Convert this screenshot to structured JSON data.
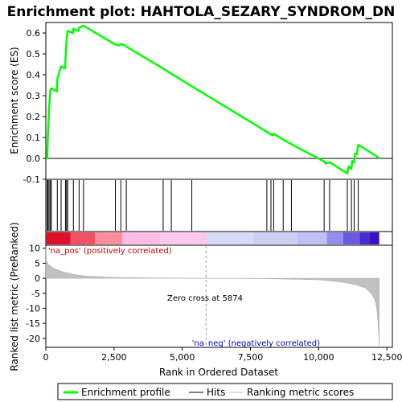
{
  "chart_data": {
    "type": "line",
    "title": "Enrichment plot: HAHTOLA_SEZARY_SYNDROM_DN",
    "top_panel": {
      "ylabel": "Enrichment score (ES)",
      "ylim": [
        -0.1,
        0.65
      ],
      "yticks": [
        "-0.1",
        "0.0",
        "0.1",
        "0.2",
        "0.3",
        "0.4",
        "0.5",
        "0.6"
      ],
      "ytick_values": [
        -0.1,
        0.0,
        0.1,
        0.2,
        0.3,
        0.4,
        0.5,
        0.6
      ],
      "series": {
        "name": "Enrichment profile",
        "color": "#00ff00",
        "x": [
          0,
          50,
          80,
          120,
          170,
          200,
          400,
          420,
          560,
          700,
          720,
          760,
          800,
          1000,
          1010,
          1200,
          1220,
          1350,
          1380,
          2500,
          2550,
          2700,
          2750,
          2900,
          2950,
          4300,
          4600,
          5350,
          8250,
          8300,
          8350,
          8700,
          9000,
          10200,
          10250,
          10400,
          10450,
          11050,
          11100,
          11200,
          11230,
          11300,
          11330,
          11400,
          11450,
          12250
        ],
        "y": [
          0.0,
          0.0,
          0.12,
          0.24,
          0.33,
          0.335,
          0.32,
          0.38,
          0.44,
          0.43,
          0.47,
          0.57,
          0.61,
          0.6,
          0.62,
          0.61,
          0.625,
          0.632,
          0.635,
          0.548,
          0.545,
          0.54,
          0.548,
          0.54,
          0.535,
          0.43,
          0.405,
          0.345,
          0.115,
          0.11,
          0.118,
          0.09,
          0.068,
          -0.015,
          -0.025,
          -0.018,
          -0.022,
          -0.072,
          -0.038,
          -0.05,
          -0.012,
          -0.02,
          0.022,
          0.02,
          0.065,
          0.0
        ]
      }
    },
    "hits": {
      "name": "Hits",
      "x": [
        50,
        80,
        120,
        170,
        200,
        420,
        560,
        720,
        760,
        800,
        1010,
        1220,
        1380,
        2550,
        2750,
        2950,
        4300,
        4600,
        5350,
        8100,
        8250,
        8350,
        8700,
        9000,
        10200,
        10400,
        11050,
        11200,
        11300,
        11450
      ]
    },
    "bottom_panel": {
      "ylabel": "Ranked list metric (PreRanked)",
      "xlabel": "Rank in Ordered Dataset",
      "ylim": [
        -23,
        11
      ],
      "yticks": [
        "10",
        "5",
        "0",
        "-5",
        "-10",
        "-15",
        "-20"
      ],
      "ytick_values": [
        10,
        5,
        0,
        -5,
        -10,
        -15,
        -20
      ],
      "xlim": [
        0,
        12700
      ],
      "xticks": [
        "0",
        "2,500",
        "5,000",
        "7,500",
        "10,000",
        "12,500"
      ],
      "xtick_values": [
        0,
        2500,
        5000,
        7500,
        10000,
        12500
      ],
      "metric_curve": {
        "x": [
          0,
          20,
          100,
          300,
          600,
          1000,
          1500,
          2500,
          4000,
          5874,
          8000,
          10000,
          10800,
          11300,
          11700,
          11900,
          12050,
          12120,
          12170,
          12200,
          12220
        ],
        "y": [
          10.5,
          6.0,
          4.5,
          3.3,
          2.2,
          1.3,
          0.7,
          0.3,
          0.1,
          0.0,
          -0.1,
          -0.5,
          -1.2,
          -2.0,
          -3.2,
          -4.8,
          -7.0,
          -9.5,
          -14.0,
          -18.5,
          -22.5
        ]
      },
      "annotations": {
        "pos": "'na_pos' (positively correlated)",
        "neg": "'na_neg' (negatively correlated)",
        "zero_cross": "Zero cross at 5874"
      },
      "zero_cross_x": 5874
    },
    "heat_bar": {
      "x_start": 0,
      "x_end": 12220,
      "segments": [
        {
          "from": 0,
          "to": 900,
          "color": "#e0102a"
        },
        {
          "from": 900,
          "to": 1800,
          "color": "#f35066"
        },
        {
          "from": 1800,
          "to": 2800,
          "color": "#ff8c9a"
        },
        {
          "from": 2800,
          "to": 4200,
          "color": "#ffbce6"
        },
        {
          "from": 4200,
          "to": 5874,
          "color": "#ffc8ec"
        },
        {
          "from": 5874,
          "to": 7600,
          "color": "#d8d8f8"
        },
        {
          "from": 7600,
          "to": 9200,
          "color": "#cfcff6"
        },
        {
          "from": 9200,
          "to": 10300,
          "color": "#c0c0f4"
        },
        {
          "from": 10300,
          "to": 10900,
          "color": "#9090ec"
        },
        {
          "from": 10900,
          "to": 11500,
          "color": "#6a5ae0"
        },
        {
          "from": 11500,
          "to": 11850,
          "color": "#4a2ad4"
        },
        {
          "from": 11850,
          "to": 12220,
          "color": "#3a10c0"
        }
      ]
    },
    "legend": {
      "entries": [
        {
          "label": "Enrichment profile",
          "color": "#00ff00"
        },
        {
          "label": "Hits",
          "color": "#000000"
        },
        {
          "label": "Ranking metric scores",
          "color": "#c0c0c0"
        }
      ]
    },
    "grid": false
  }
}
